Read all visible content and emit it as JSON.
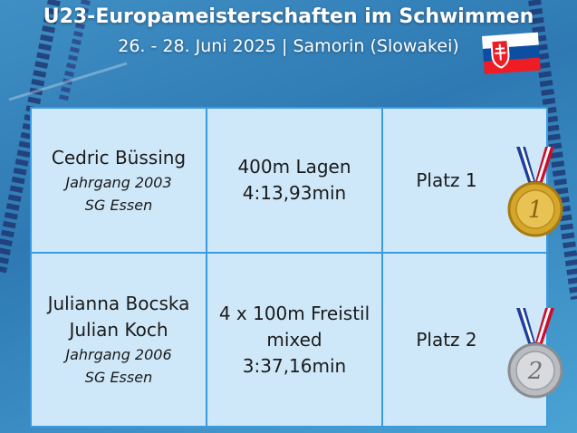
{
  "header": {
    "title": "U23-Europameisterschaften im Schwimmen",
    "subtitle": "26. - 28. Juni 2025 | Samorin (Slowakei)"
  },
  "table": {
    "rows": [
      {
        "athletes": [
          "Cedric Büssing"
        ],
        "details": [
          "Jahrgang 2003",
          "SG Essen"
        ],
        "event": [
          "400m Lagen",
          "4:13,93min"
        ],
        "place": "Platz 1",
        "medal": "1"
      },
      {
        "athletes": [
          "Julianna Bocska",
          "Julian Koch"
        ],
        "details": [
          "Jahrgang 2006",
          "SG Essen"
        ],
        "event": [
          "4 x 100m Freistil",
          "mixed",
          "3:37,16min"
        ],
        "place": "Platz 2",
        "medal": "2"
      }
    ]
  }
}
